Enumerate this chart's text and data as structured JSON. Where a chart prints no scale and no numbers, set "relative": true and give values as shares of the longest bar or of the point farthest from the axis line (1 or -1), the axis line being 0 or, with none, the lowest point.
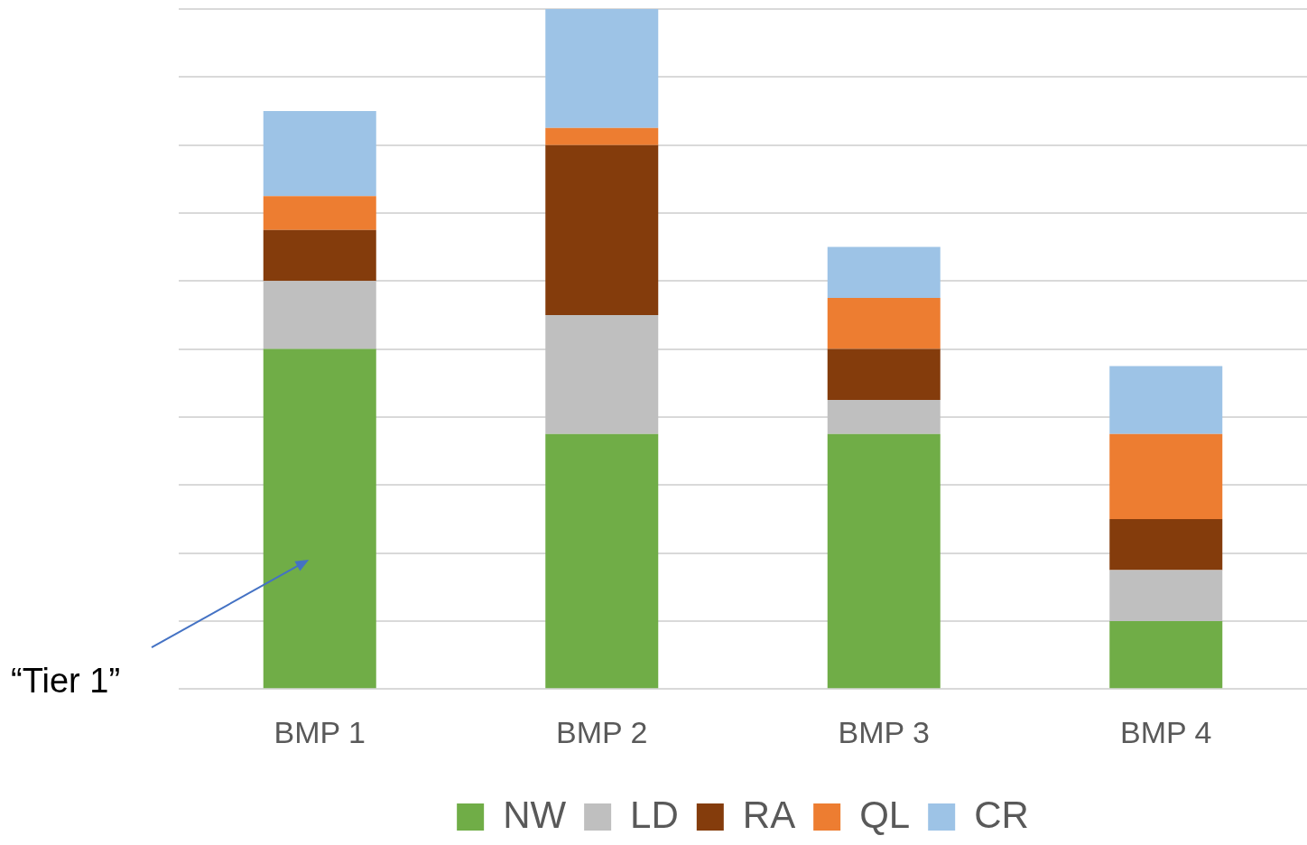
{
  "chart_data": {
    "type": "bar",
    "relative": true,
    "stacked": true,
    "grid": "y",
    "legend": "bottom",
    "categories": [
      "BMP 1",
      "BMP 2",
      "BMP 3",
      "BMP 4"
    ],
    "series": [
      {
        "name": "NW",
        "color": "#70ad47",
        "values": [
          0.5,
          0.375,
          0.375,
          0.1
        ]
      },
      {
        "name": "LD",
        "color": "#bfbfbf",
        "values": [
          0.1,
          0.175,
          0.05,
          0.075
        ]
      },
      {
        "name": "RA",
        "color": "#843c0c",
        "values": [
          0.075,
          0.25,
          0.075,
          0.075
        ]
      },
      {
        "name": "QL",
        "color": "#ed7d31",
        "values": [
          0.05,
          0.025,
          0.075,
          0.125
        ]
      },
      {
        "name": "CR",
        "color": "#9dc3e6",
        "values": [
          0.125,
          0.175,
          0.075,
          0.1
        ]
      }
    ],
    "annotations": [
      "“Tier 1”"
    ]
  }
}
